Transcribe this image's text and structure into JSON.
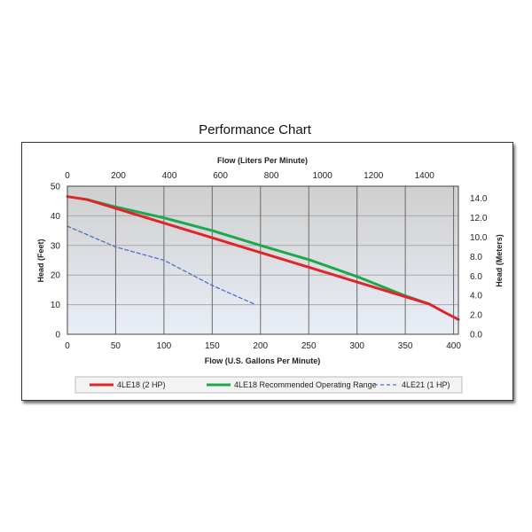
{
  "chart_data": {
    "type": "line",
    "title": "Performance Chart",
    "xlabel": "Flow (U.S. Gallons Per Minute)",
    "x2label": "Flow (Liters Per Minute)",
    "ylabel": "Head (Feet)",
    "y2label": "Head (Meters)",
    "xlim": [
      0,
      405
    ],
    "ylim": [
      0,
      50
    ],
    "x2lim": [
      0,
      1533
    ],
    "y2lim": [
      0,
      15.24
    ],
    "xticks": [
      0,
      50,
      100,
      150,
      200,
      250,
      300,
      350,
      400
    ],
    "yticks": [
      0,
      10,
      20,
      30,
      40,
      50
    ],
    "x2ticks": [
      0,
      200,
      400,
      600,
      800,
      1000,
      1200,
      1400
    ],
    "y2ticks": [
      "0.0",
      "2.0",
      "4.0",
      "6.0",
      "8.0",
      "10.0",
      "12.0",
      "14.0"
    ],
    "grid": true,
    "legend_position": "bottom",
    "series": [
      {
        "name": "4LE18 (2 HP)",
        "color": "#e0242b",
        "style": "solid",
        "points": [
          [
            0,
            46.5
          ],
          [
            20,
            45.5
          ],
          [
            375,
            10.2
          ],
          [
            390,
            7.5
          ],
          [
            405,
            5
          ]
        ]
      },
      {
        "name": "4LE18 Recommended Operating Range",
        "color": "#1ea84a",
        "style": "solid",
        "points": [
          [
            20,
            45.5
          ],
          [
            50,
            43
          ],
          [
            100,
            39.3
          ],
          [
            150,
            35
          ],
          [
            200,
            30
          ],
          [
            250,
            25.2
          ],
          [
            300,
            19.5
          ],
          [
            350,
            13
          ],
          [
            375,
            10.2
          ]
        ]
      },
      {
        "name": "4LE21 (1 HP)",
        "color": "#4a73c8",
        "style": "dashed",
        "points": [
          [
            0,
            36.5
          ],
          [
            50,
            29.5
          ],
          [
            100,
            25
          ],
          [
            150,
            16.5
          ],
          [
            195,
            10
          ]
        ]
      }
    ]
  }
}
